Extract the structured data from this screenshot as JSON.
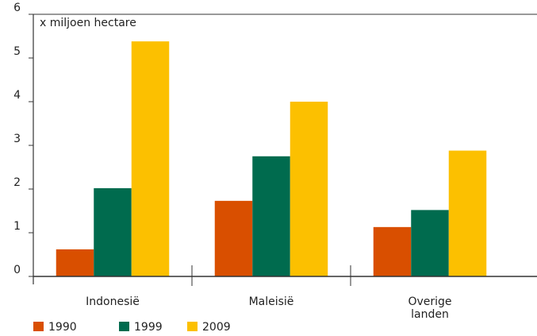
{
  "chart_data": {
    "type": "bar",
    "y_label": "x miljoen hectare",
    "categories": [
      "Indonesië",
      "Maleisië",
      "Overige\nlanden"
    ],
    "series": [
      {
        "name": "1990",
        "color": "#d94f00",
        "values": [
          0.62,
          1.73,
          1.13
        ]
      },
      {
        "name": "1999",
        "color": "#006b4e",
        "values": [
          2.02,
          2.75,
          1.52
        ]
      },
      {
        "name": "2009",
        "color": "#fcc000",
        "values": [
          5.38,
          4.0,
          2.88
        ]
      }
    ],
    "ylim": [
      0,
      6
    ],
    "yticks": [
      0,
      1,
      2,
      3,
      4,
      5,
      6
    ]
  }
}
